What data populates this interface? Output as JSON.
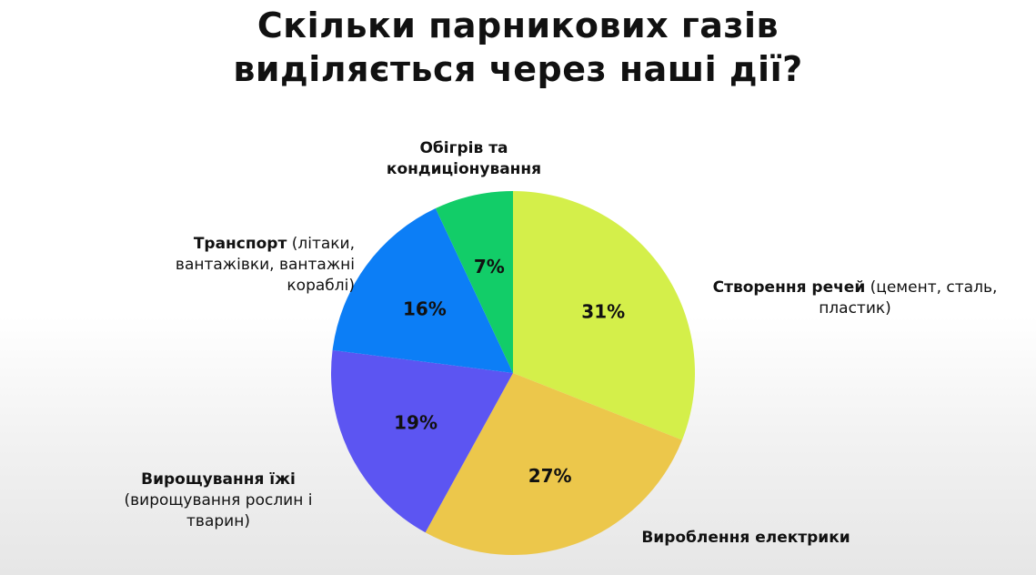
{
  "title_line1": "Скільки парникових газів",
  "title_line2": "виділяється через наші дії?",
  "chart_data": {
    "type": "pie",
    "title": "Скільки парникових газів виділяється через наші дії?",
    "slices": [
      {
        "key": "things",
        "label": "Створення речей",
        "detail": "(цемент, сталь, пластик)",
        "value": 31,
        "value_label": "31%",
        "color": "#d4ef4a"
      },
      {
        "key": "electric",
        "label": "Вироблення електрики",
        "detail": "",
        "value": 27,
        "value_label": "27%",
        "color": "#ecc74b"
      },
      {
        "key": "food",
        "label": "Вирощування їжі",
        "detail": "(вирощування рослин і тварин)",
        "value": 19,
        "value_label": "19%",
        "color": "#5c55f2"
      },
      {
        "key": "transport",
        "label": "Транспорт",
        "detail": "(літаки, вантажівки, вантажні кораблі)",
        "value": 16,
        "value_label": "16%",
        "color": "#0c7ef6"
      },
      {
        "key": "heating",
        "label": "Обігрів та кондиціонування",
        "detail": "",
        "value": 7,
        "value_label": "7%",
        "color": "#12cd68"
      }
    ]
  },
  "labels": {
    "heating_line1": "Обігрів та",
    "heating_line2": "кондиціонування",
    "transport_name": "Транспорт",
    "transport_detail1": "(літаки,",
    "transport_detail2": "вантажівки, вантажні",
    "transport_detail3": "кораблі)",
    "things_name": "Створення речей",
    "things_detail1": "(цемент, сталь,",
    "things_detail2": "пластик)",
    "food_name": "Вирощування їжі",
    "food_detail1": "(вирощування рослин і",
    "food_detail2": "тварин)",
    "electric_name": "Вироблення електрики"
  }
}
